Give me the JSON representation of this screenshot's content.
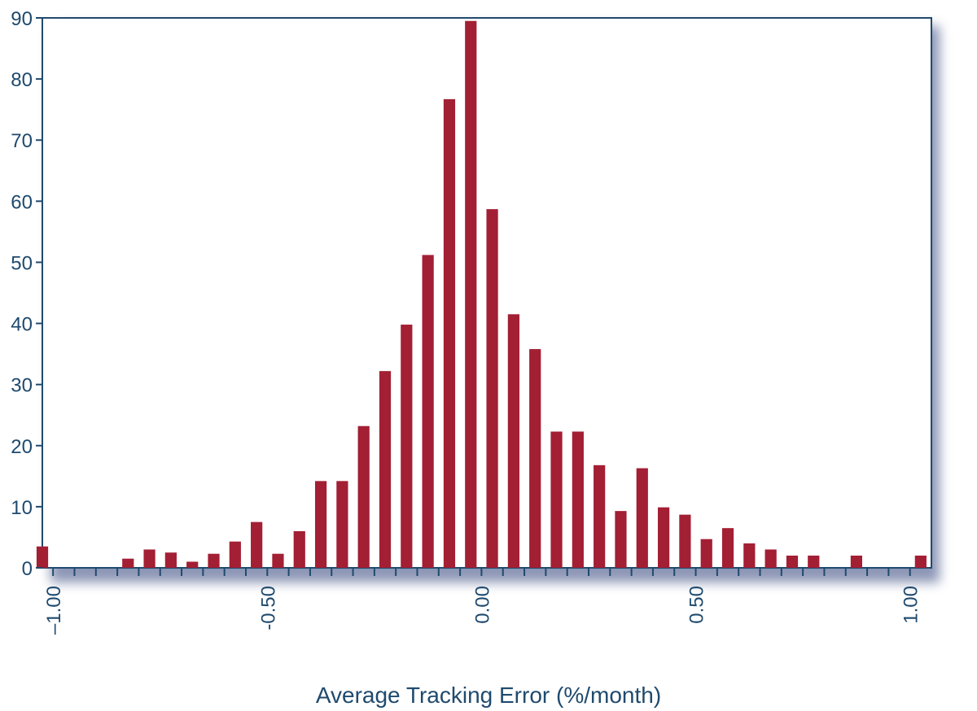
{
  "chart_data": {
    "type": "bar",
    "title": "",
    "xlabel": "Average Tracking Error (%/month)",
    "ylabel": "",
    "ylim": [
      0,
      90
    ],
    "xlim": [
      -1.025,
      1.05
    ],
    "grid": false,
    "legend": "none",
    "colors": {
      "bar": "#A31F34",
      "axis": "#1F4A6E",
      "shadow": "#2E3F7A"
    },
    "y_ticks": [
      {
        "value": 0,
        "label": "0"
      },
      {
        "value": 10,
        "label": "10"
      },
      {
        "value": 20,
        "label": "20"
      },
      {
        "value": 30,
        "label": "30"
      },
      {
        "value": 40,
        "label": "40"
      },
      {
        "value": 50,
        "label": "50"
      },
      {
        "value": 60,
        "label": "60"
      },
      {
        "value": 70,
        "label": "70"
      },
      {
        "value": 80,
        "label": "80"
      },
      {
        "value": 90,
        "label": "90"
      }
    ],
    "x_ticks": [
      {
        "value": -1.0,
        "label": "–1.00"
      },
      {
        "value": -0.5,
        "label": "-0.50"
      },
      {
        "value": 0.0,
        "label": "0.00"
      },
      {
        "value": 0.5,
        "label": "0.50"
      },
      {
        "value": 1.0,
        "label": "1.00"
      }
    ],
    "bin_width": 0.05,
    "x": [
      -1.025,
      -0.975,
      -0.925,
      -0.875,
      -0.825,
      -0.775,
      -0.725,
      -0.675,
      -0.625,
      -0.575,
      -0.525,
      -0.475,
      -0.425,
      -0.375,
      -0.325,
      -0.275,
      -0.225,
      -0.175,
      -0.125,
      -0.075,
      -0.025,
      0.025,
      0.075,
      0.125,
      0.175,
      0.225,
      0.275,
      0.325,
      0.375,
      0.425,
      0.475,
      0.525,
      0.575,
      0.625,
      0.675,
      0.725,
      0.775,
      0.825,
      0.875,
      0.925,
      0.975,
      1.025
    ],
    "values": [
      3.5,
      0,
      0,
      0,
      1.5,
      3,
      2.5,
      1,
      2.3,
      4.3,
      7.5,
      2.3,
      6,
      14.2,
      14.2,
      23.2,
      32.2,
      39.8,
      51.2,
      76.7,
      89.5,
      58.7,
      41.5,
      35.8,
      22.3,
      22.3,
      16.8,
      9.3,
      16.3,
      9.9,
      8.7,
      4.7,
      6.5,
      4,
      3,
      2,
      2,
      0,
      2,
      0,
      0,
      2
    ]
  }
}
